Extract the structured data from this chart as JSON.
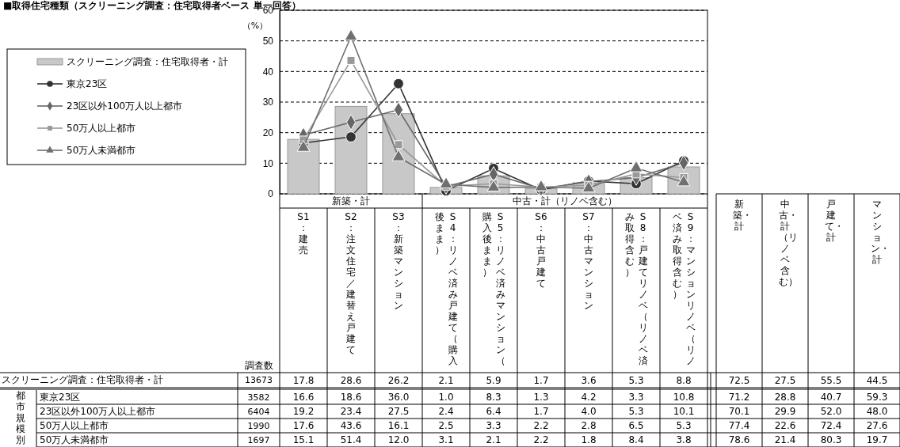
{
  "chart_data": [
    {
      "type": "bar",
      "title": "■取得住宅種類（スクリーニング調査：住宅取得者ベース 単一回答）",
      "ylabel": "（%）",
      "categories": [
        "S1：建売",
        "S2：注文住宅／建替え戸建て",
        "S3：新築マンション",
        "S4：リノベ済み戸建て（購入後まま）",
        "S5：リノベ済みマンション（購入後まま）",
        "S6：中古戸建て",
        "S7：中古マンション",
        "S8：戸建てリノベ（リノベ済み取得含む）",
        "S9：マンションリノベ（リノベ済み取得含む）"
      ],
      "series": [
        {
          "name": "スクリーニング調査：住宅取得者・計",
          "color": "#c8c8c8",
          "values": [
            17.8,
            28.6,
            26.2,
            2.1,
            5.9,
            1.7,
            3.6,
            5.3,
            8.8
          ],
          "value_labels": [
            "17.8",
            "28.6",
            "26.2",
            "2.1",
            "5.9",
            "1.7",
            "3.6",
            "5.3",
            "8.8"
          ]
        },
        {
          "name": "東京23区",
          "type": "line",
          "marker": "circle",
          "color": "#333333",
          "values": [
            16.6,
            18.6,
            36.0,
            1.0,
            8.3,
            1.3,
            4.2,
            3.3,
            10.8
          ],
          "value_labels": [
            "16.6",
            "18.6",
            "36.0",
            "1.0",
            "8.3",
            "1.3",
            "4.2",
            "3.3",
            "10.8"
          ]
        },
        {
          "name": "23区以外100万人以上都市",
          "type": "line",
          "marker": "diamond",
          "color": "#666666",
          "values": [
            19.2,
            23.4,
            27.5,
            2.4,
            6.4,
            1.7,
            4.0,
            5.3,
            10.1
          ],
          "value_labels": [
            "19.2",
            "23.4",
            "27.5",
            "2.4",
            "6.4",
            "1.7",
            "4.0",
            "5.3",
            "10.1"
          ]
        },
        {
          "name": "50万人以上都市",
          "type": "line",
          "marker": "square",
          "color": "#999999",
          "values": [
            17.6,
            43.6,
            16.1,
            2.5,
            3.3,
            2.2,
            2.8,
            6.5,
            5.3
          ],
          "value_labels": [
            "17.6",
            "43.6",
            "16.1",
            "2.5",
            "3.3",
            "2.2",
            "2.8",
            "6.5",
            "5.3"
          ]
        },
        {
          "name": "50万人未満都市",
          "type": "line",
          "marker": "triangle",
          "color": "#707070",
          "values": [
            15.1,
            51.4,
            12.0,
            3.1,
            2.1,
            2.2,
            1.8,
            8.4,
            3.8
          ],
          "value_labels": [
            "15.1",
            "51.4",
            "12.0",
            "3.1",
            "2.1",
            "2.2",
            "1.8",
            "8.4",
            "3.8"
          ]
        }
      ],
      "ylim": [
        0,
        60
      ],
      "yticks": [
        0,
        10,
        20,
        30,
        40,
        50,
        60
      ],
      "grid": "y",
      "legend": "left",
      "line_style": "solid",
      "annotations": [
        "新築・計",
        "中古・計（リノベ含む）",
        "都市規模別"
      ]
    },
    {
      "type": "other",
      "categories": [
        "調査数",
        "新築・計",
        "中古・計（リノベ含む）",
        "戸建て・計",
        "マンション・計"
      ],
      "series": [
        {
          "values": [
            13673,
            72.5,
            27.5,
            55.5,
            44.5
          ],
          "value_labels": [
            "13673",
            "72.5",
            "27.5",
            "55.5",
            "44.5"
          ]
        },
        {
          "values": [
            3582,
            71.2,
            28.8,
            40.7,
            59.3
          ],
          "value_labels": [
            "3582",
            "71.2",
            "28.8",
            "40.7",
            "59.3"
          ]
        },
        {
          "values": [
            6404,
            70.1,
            29.9,
            52.0,
            48.0
          ],
          "value_labels": [
            "6404",
            "70.1",
            "29.9",
            "52.0",
            "48.0"
          ]
        },
        {
          "values": [
            1990,
            77.4,
            22.6,
            72.4,
            27.6
          ],
          "value_labels": [
            "1990",
            "77.4",
            "22.6",
            "72.4",
            "27.6"
          ]
        },
        {
          "values": [
            1697,
            78.6,
            21.4,
            80.3,
            19.7
          ],
          "value_labels": [
            "1697",
            "78.6",
            "21.4",
            "80.3",
            "19.7"
          ]
        }
      ]
    }
  ]
}
